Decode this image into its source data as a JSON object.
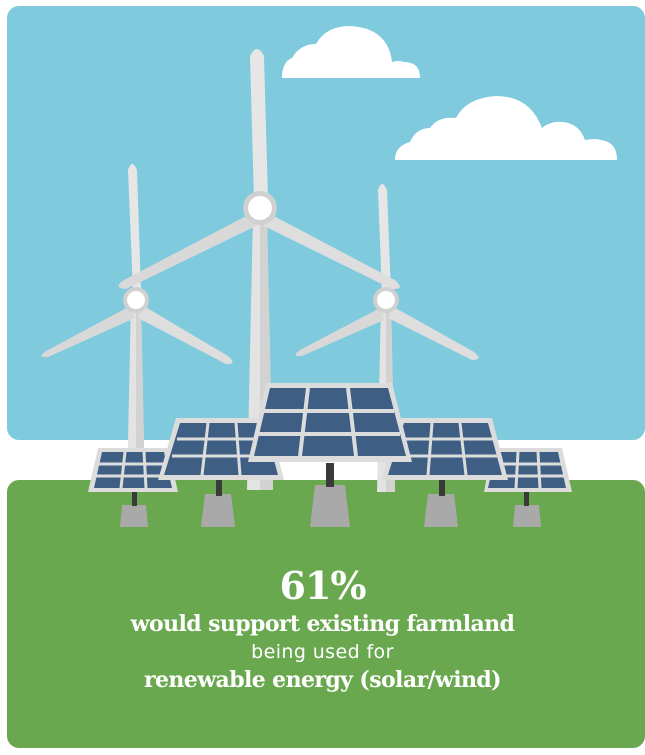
{
  "infographic": {
    "stat_value": "61%",
    "line_1": "would support existing farmland",
    "line_2": "being used for",
    "line_3": "renewable energy (solar/wind)"
  },
  "colors": {
    "sky": "#7fcadd",
    "ground": "#6aa84f",
    "cloud": "#ffffff",
    "turbine": "#e3e3e3",
    "turbine_shade": "#c9c9c9",
    "panel_cell": "#3e5f83",
    "panel_frame": "#dcdcdc",
    "panel_stand": "#a9a9a9",
    "text": "#ffffff"
  },
  "illustration": {
    "icons": [
      "cloud-icon",
      "wind-turbine-icon",
      "solar-panel-icon"
    ]
  }
}
